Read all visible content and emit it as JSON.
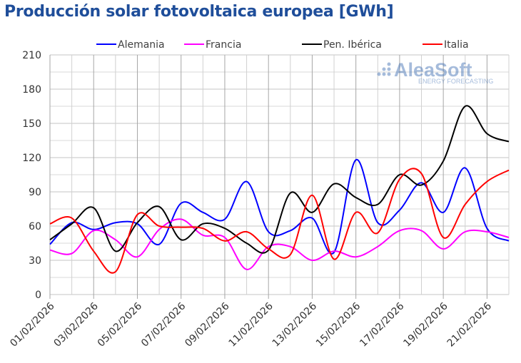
{
  "chart_data": {
    "type": "line",
    "title": "Producción solar fotovoltaica europea [GWh]",
    "xlabel": "",
    "ylabel": "",
    "ylim": [
      0,
      210
    ],
    "yticks": [
      0,
      30,
      60,
      90,
      120,
      150,
      180,
      210
    ],
    "grid": true,
    "legend": "top",
    "x": [
      "01/02/2026",
      "02/02/2026",
      "03/02/2026",
      "04/02/2026",
      "05/02/2026",
      "06/02/2026",
      "07/02/2026",
      "08/02/2026",
      "09/02/2026",
      "10/02/2026",
      "11/02/2026",
      "12/02/2026",
      "13/02/2026",
      "14/02/2026",
      "15/02/2026",
      "16/02/2026",
      "17/02/2026",
      "18/02/2026",
      "19/02/2026",
      "20/02/2026",
      "21/02/2026",
      "22/02/2026"
    ],
    "xtick_labels": [
      "01/02/2026",
      "03/02/2026",
      "05/02/2026",
      "07/02/2026",
      "09/02/2026",
      "11/02/2026",
      "13/02/2026",
      "15/02/2026",
      "17/02/2026",
      "19/02/2026",
      "21/02/2026"
    ],
    "series": [
      {
        "name": "Alemania",
        "color": "#0000ff",
        "values": [
          44,
          63,
          57,
          63,
          62,
          44,
          80,
          72,
          66,
          99,
          55,
          56,
          67,
          37,
          118,
          63,
          74,
          98,
          72,
          111,
          58,
          47
        ]
      },
      {
        "name": "Francia",
        "color": "#ff00ff",
        "values": [
          39,
          36,
          56,
          48,
          33,
          57,
          66,
          52,
          50,
          22,
          42,
          42,
          30,
          38,
          33,
          42,
          56,
          56,
          40,
          55,
          55,
          50
        ]
      },
      {
        "name": "Pen. Ibérica",
        "color": "#000000",
        "values": [
          48,
          62,
          76,
          38,
          63,
          77,
          48,
          62,
          58,
          45,
          39,
          89,
          72,
          97,
          85,
          79,
          105,
          96,
          117,
          165,
          141,
          134
        ]
      },
      {
        "name": "Italia",
        "color": "#ff0000",
        "values": [
          62,
          67,
          38,
          20,
          70,
          60,
          59,
          58,
          47,
          55,
          40,
          35,
          87,
          31,
          72,
          54,
          101,
          106,
          50,
          79,
          99,
          109
        ]
      }
    ]
  },
  "watermark": {
    "brand": "AleaSoft",
    "tagline": "ENERGY FORECASTING"
  }
}
